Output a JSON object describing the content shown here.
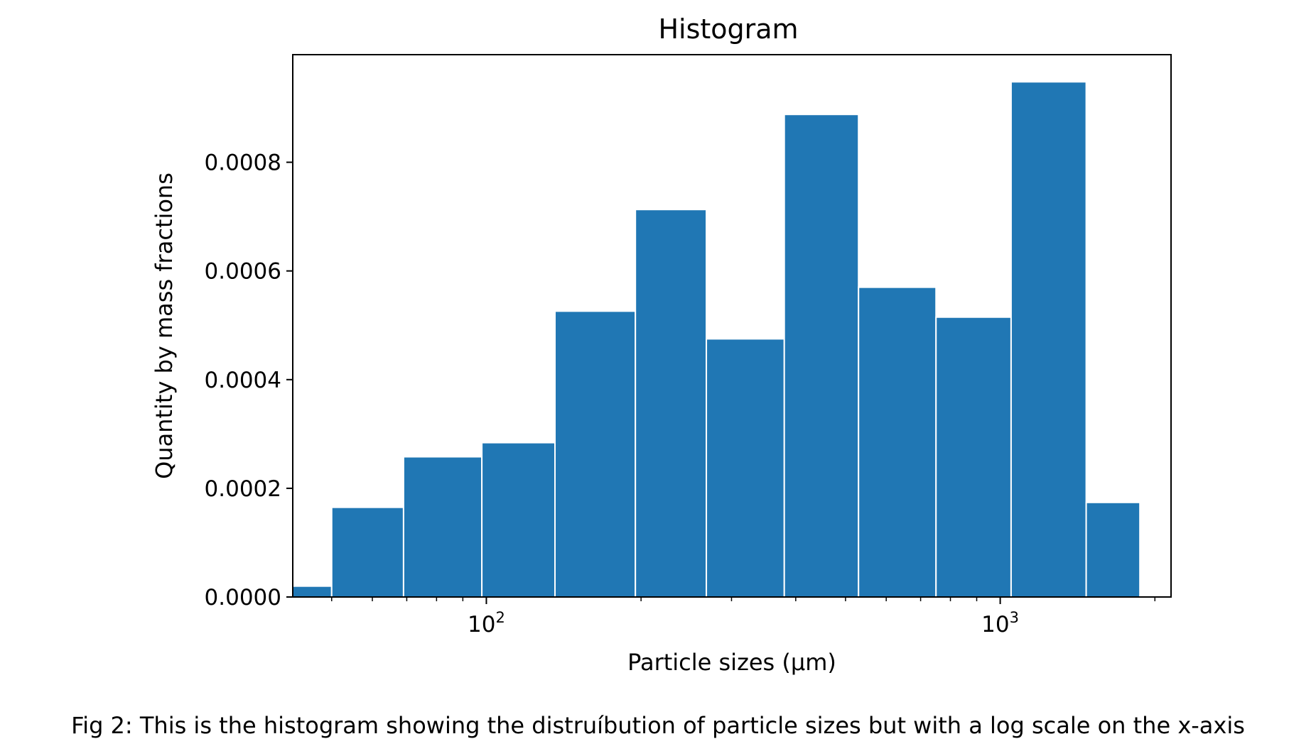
{
  "chart_data": {
    "type": "bar",
    "title": "Histogram",
    "xlabel": "Particle sizes (µm)",
    "ylabel": "Quantity by mass fractions",
    "x_scale": "log",
    "xlim": [
      42,
      2150
    ],
    "ylim": [
      0,
      0.000998
    ],
    "bar_color": "#2077b4",
    "edge_color": "#ffffff",
    "y_ticks": [
      "0.0000",
      "0.0002",
      "0.0004",
      "0.0006",
      "0.0008"
    ],
    "y_tick_values": [
      0,
      0.0002,
      0.0004,
      0.0006,
      0.0008
    ],
    "x_major_ticks": [
      100,
      1000
    ],
    "x_major_tick_labels": [
      {
        "base": "10",
        "exp": "2"
      },
      {
        "base": "10",
        "exp": "3"
      }
    ],
    "x_minor_ticks": [
      50,
      60,
      70,
      80,
      90,
      200,
      300,
      400,
      500,
      600,
      700,
      800,
      900,
      2000
    ],
    "bins": [
      {
        "left": 42,
        "right": 50,
        "value": 2e-05
      },
      {
        "left": 50,
        "right": 69,
        "value": 0.000165
      },
      {
        "left": 69,
        "right": 98,
        "value": 0.000258
      },
      {
        "left": 98,
        "right": 136,
        "value": 0.000284
      },
      {
        "left": 136,
        "right": 195,
        "value": 0.000526
      },
      {
        "left": 195,
        "right": 268,
        "value": 0.000713
      },
      {
        "left": 268,
        "right": 380,
        "value": 0.000475
      },
      {
        "left": 380,
        "right": 530,
        "value": 0.000888
      },
      {
        "left": 530,
        "right": 750,
        "value": 0.00057
      },
      {
        "left": 750,
        "right": 1050,
        "value": 0.000515
      },
      {
        "left": 1050,
        "right": 1470,
        "value": 0.000948
      },
      {
        "left": 1470,
        "right": 1870,
        "value": 0.000174
      }
    ],
    "grid": false
  },
  "caption": "Fig 2: This is the histogram showing the distruíbution of particle sizes but with a log scale on the x-axis"
}
